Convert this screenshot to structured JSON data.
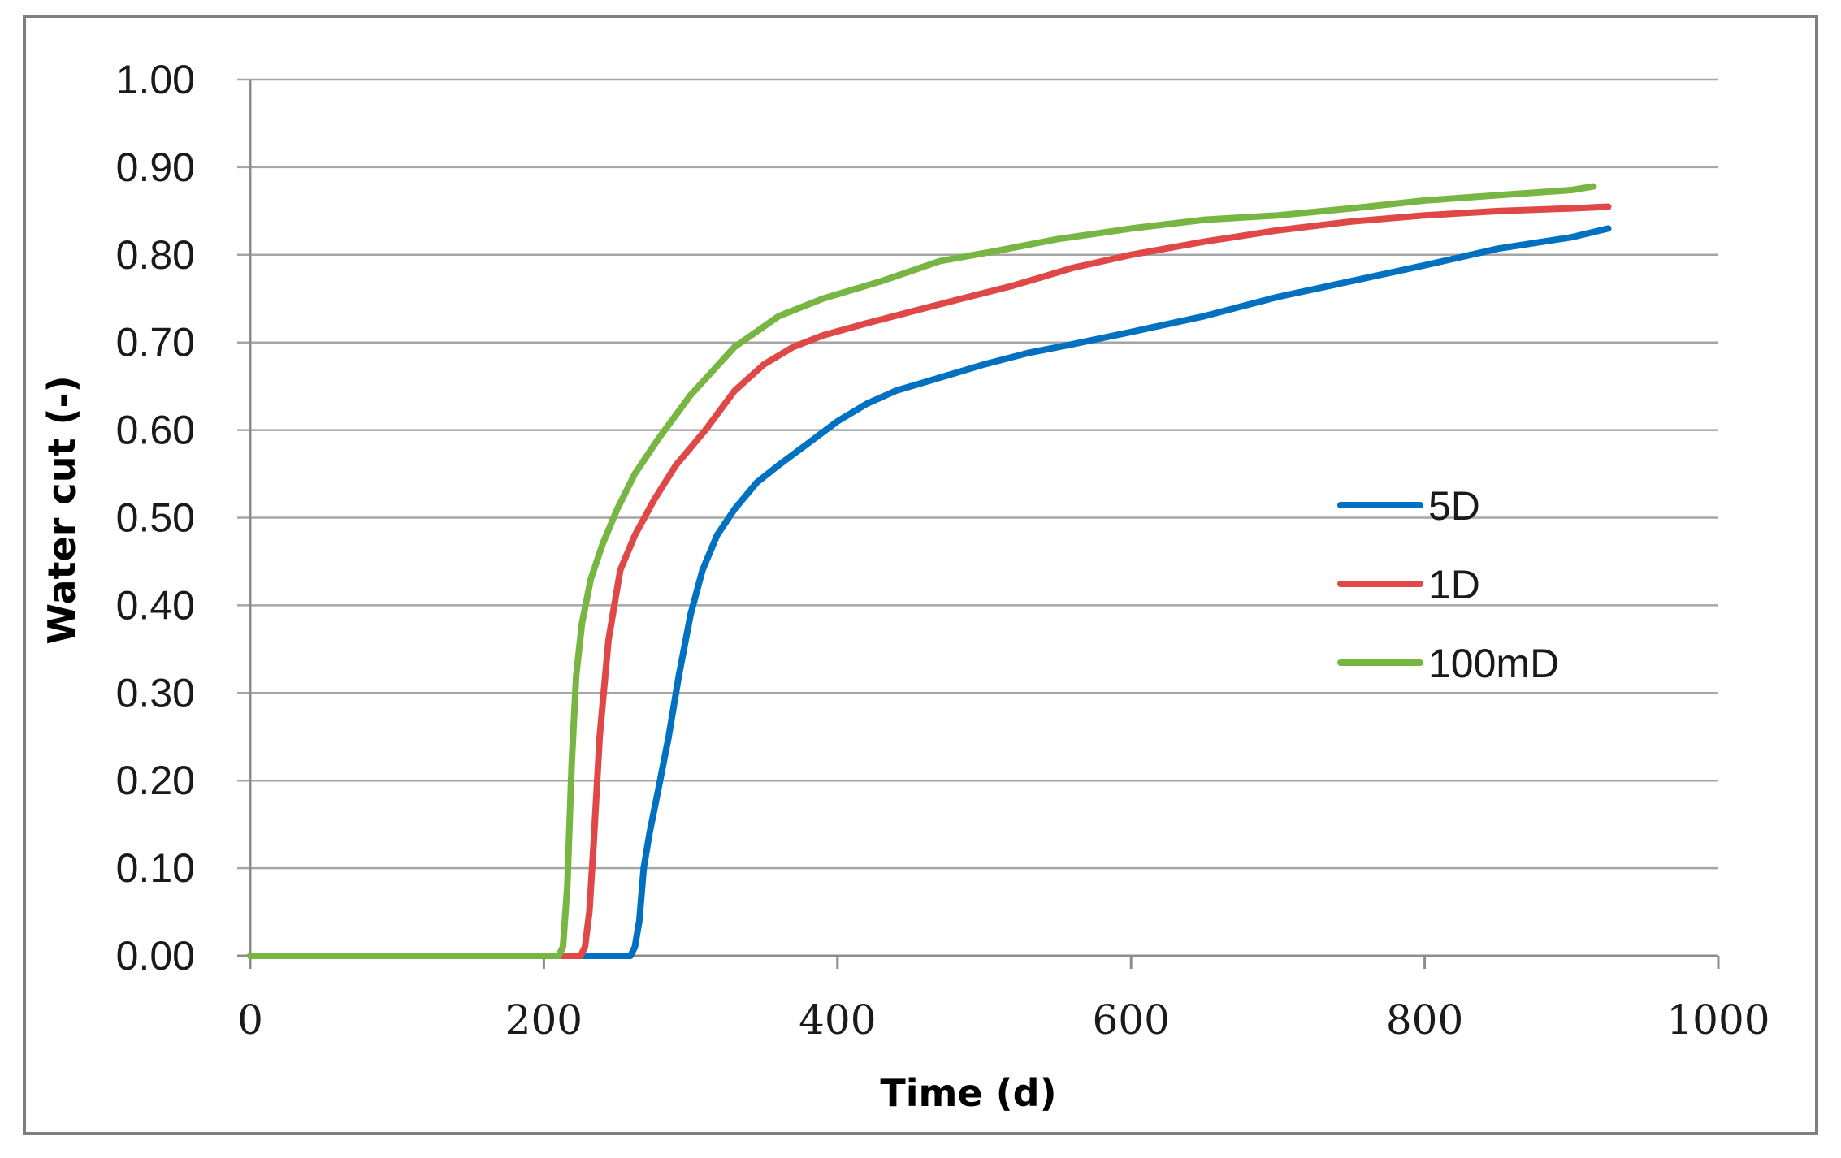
{
  "chart_data": {
    "type": "line",
    "title": "",
    "xlabel": "Time (d)",
    "ylabel": "Water cut (-)",
    "xlim": [
      0,
      1000
    ],
    "ylim": [
      0,
      1
    ],
    "xticks": [
      0,
      200,
      400,
      600,
      800,
      1000
    ],
    "xtick_labels": [
      "0",
      "200",
      "400",
      "600",
      "800",
      "1000"
    ],
    "yticks": [
      0,
      0.1,
      0.2,
      0.3,
      0.4,
      0.5,
      0.6,
      0.7,
      0.8,
      0.9,
      1.0
    ],
    "ytick_labels": [
      "0.00",
      "0.10",
      "0.20",
      "0.30",
      "0.40",
      "0.50",
      "0.60",
      "0.70",
      "0.80",
      "0.90",
      "1.00"
    ],
    "grid": true,
    "legend_position": "right-center",
    "series": [
      {
        "name": "5D",
        "color": "#0070C0",
        "x": [
          0,
          259,
          262,
          265,
          268,
          272,
          278,
          285,
          292,
          300,
          308,
          318,
          330,
          345,
          360,
          380,
          400,
          420,
          440,
          460,
          480,
          500,
          530,
          560,
          600,
          650,
          700,
          750,
          800,
          850,
          900,
          925
        ],
        "y": [
          0,
          0,
          0.01,
          0.04,
          0.1,
          0.14,
          0.19,
          0.25,
          0.32,
          0.39,
          0.44,
          0.48,
          0.51,
          0.54,
          0.56,
          0.585,
          0.61,
          0.63,
          0.645,
          0.655,
          0.665,
          0.675,
          0.688,
          0.698,
          0.712,
          0.73,
          0.752,
          0.77,
          0.788,
          0.807,
          0.82,
          0.83
        ]
      },
      {
        "name": "1D",
        "color": "#E04848",
        "x": [
          0,
          225,
          228,
          231,
          234,
          238,
          244,
          252,
          262,
          275,
          290,
          310,
          330,
          350,
          370,
          390,
          420,
          450,
          480,
          520,
          560,
          600,
          650,
          700,
          750,
          800,
          850,
          900,
          925
        ],
        "y": [
          0,
          0,
          0.01,
          0.05,
          0.13,
          0.25,
          0.36,
          0.44,
          0.48,
          0.52,
          0.56,
          0.6,
          0.645,
          0.675,
          0.695,
          0.708,
          0.722,
          0.735,
          0.748,
          0.765,
          0.785,
          0.8,
          0.815,
          0.828,
          0.838,
          0.845,
          0.85,
          0.853,
          0.855
        ]
      },
      {
        "name": "100mD",
        "color": "#77B642",
        "x": [
          0,
          210,
          213,
          216,
          219,
          222,
          226,
          232,
          240,
          250,
          262,
          278,
          300,
          330,
          360,
          390,
          430,
          470,
          510,
          550,
          600,
          650,
          700,
          750,
          800,
          850,
          900,
          915
        ],
        "y": [
          0,
          0,
          0.01,
          0.08,
          0.22,
          0.32,
          0.38,
          0.43,
          0.47,
          0.51,
          0.55,
          0.59,
          0.64,
          0.695,
          0.73,
          0.75,
          0.77,
          0.793,
          0.805,
          0.818,
          0.83,
          0.84,
          0.845,
          0.853,
          0.862,
          0.868,
          0.874,
          0.878
        ]
      }
    ]
  }
}
